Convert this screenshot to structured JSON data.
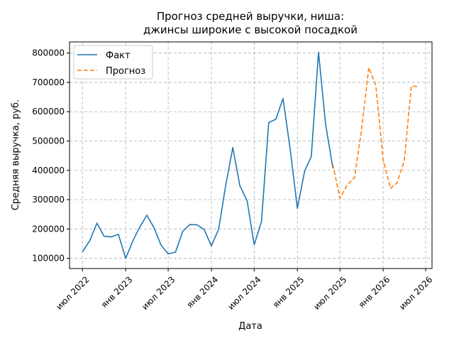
{
  "chart_data": {
    "type": "line",
    "title": "Прогноз средней выручки, ниша:\nджинсы широкие с высокой посадкой",
    "xlabel": "Дата",
    "ylabel": "Средняя выручка, руб.",
    "grid": true,
    "legend_position": "top-left",
    "xlim": [
      "2022-05-07",
      "2026-07-28"
    ],
    "ylim": [
      65000,
      838000
    ],
    "x_ticks": [
      {
        "date": "2022-07-01",
        "label": "июл 2022"
      },
      {
        "date": "2023-01-01",
        "label": "янв 2023"
      },
      {
        "date": "2023-07-01",
        "label": "июл 2023"
      },
      {
        "date": "2024-01-01",
        "label": "янв 2024"
      },
      {
        "date": "2024-07-01",
        "label": "июл 2024"
      },
      {
        "date": "2025-01-01",
        "label": "янв 2025"
      },
      {
        "date": "2025-07-01",
        "label": "июл 2025"
      },
      {
        "date": "2026-01-01",
        "label": "янв 2026"
      },
      {
        "date": "2026-07-01",
        "label": "июл 2026"
      }
    ],
    "y_ticks": [
      {
        "value": 100000,
        "label": "100000"
      },
      {
        "value": 200000,
        "label": "200000"
      },
      {
        "value": 300000,
        "label": "300000"
      },
      {
        "value": 400000,
        "label": "400000"
      },
      {
        "value": 500000,
        "label": "500000"
      },
      {
        "value": 600000,
        "label": "600000"
      },
      {
        "value": 700000,
        "label": "700000"
      },
      {
        "value": 800000,
        "label": "800000"
      }
    ],
    "series": [
      {
        "name": "Факт",
        "color": "#1f77b4",
        "style": "solid",
        "x": [
          "2022-07-01",
          "2022-08-01",
          "2022-09-01",
          "2022-10-01",
          "2022-11-01",
          "2022-12-01",
          "2023-01-01",
          "2023-02-01",
          "2023-03-01",
          "2023-04-01",
          "2023-05-01",
          "2023-06-01",
          "2023-07-01",
          "2023-08-01",
          "2023-09-01",
          "2023-10-01",
          "2023-11-01",
          "2023-12-01",
          "2024-01-01",
          "2024-02-01",
          "2024-03-01",
          "2024-04-01",
          "2024-05-01",
          "2024-06-01",
          "2024-07-01",
          "2024-08-01",
          "2024-09-01",
          "2024-10-01",
          "2024-11-01",
          "2024-12-01",
          "2025-01-01",
          "2025-02-01",
          "2025-03-01",
          "2025-04-01",
          "2025-05-01",
          "2025-06-01"
        ],
        "values": [
          122000,
          160000,
          220000,
          175000,
          173000,
          182000,
          100000,
          160000,
          205000,
          247000,
          205000,
          144000,
          115000,
          121000,
          192000,
          215000,
          214000,
          198000,
          142000,
          200000,
          345000,
          478000,
          348000,
          296000,
          146000,
          225000,
          563000,
          574000,
          645000,
          473000,
          270000,
          398000,
          447000,
          803000,
          557000,
          408000
        ]
      },
      {
        "name": "Прогноз",
        "color": "#ff7f0e",
        "style": "dashed",
        "x": [
          "2025-06-01",
          "2025-07-01",
          "2025-08-01",
          "2025-09-01",
          "2025-10-01",
          "2025-11-01",
          "2025-12-01",
          "2026-01-01",
          "2026-02-01",
          "2026-03-01",
          "2026-04-01",
          "2026-05-01",
          "2026-06-01"
        ],
        "values": [
          420000,
          305000,
          350000,
          375000,
          537000,
          750000,
          690000,
          437000,
          338000,
          357000,
          432000,
          688000,
          685000
        ]
      }
    ]
  }
}
